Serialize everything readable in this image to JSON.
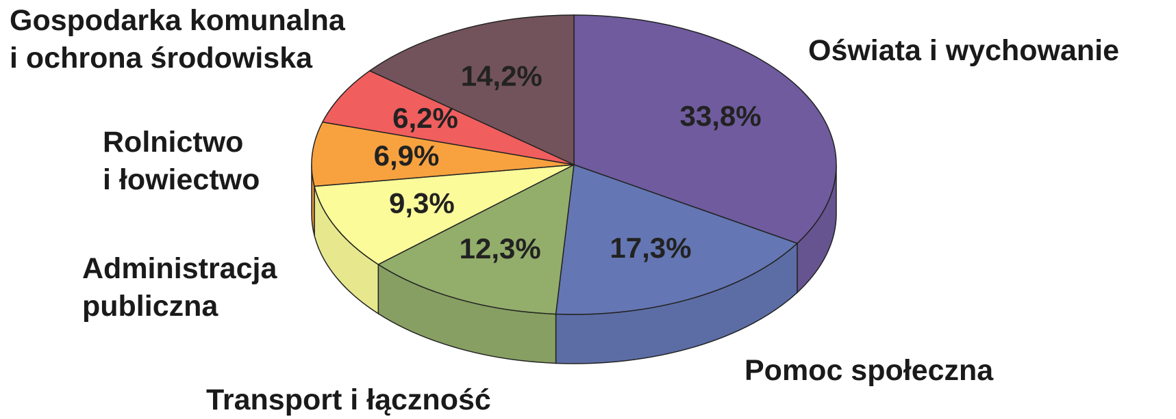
{
  "chart_data": {
    "type": "pie3d",
    "categories": [
      "Oświata i wychowanie",
      "Pomoc społeczna",
      "Transport i łączność",
      "Administracja\npubliczna",
      "Rolnictwo\ni łowiectwo",
      null,
      "Gospodarka komunalna\ni ochrona środowiska"
    ],
    "values": [
      33.8,
      17.3,
      12.3,
      9.3,
      6.9,
      6.2,
      14.2
    ],
    "value_labels": [
      "33,8%",
      "17,3%",
      "12,3%",
      "9,3%",
      "6,9%",
      "6,2%",
      "14,2%"
    ],
    "colors": [
      "#6f5b9e",
      "#6476b3",
      "#93ad6b",
      "#fbfb9a",
      "#f8a23f",
      "#f05e5e",
      "#72535b"
    ]
  }
}
